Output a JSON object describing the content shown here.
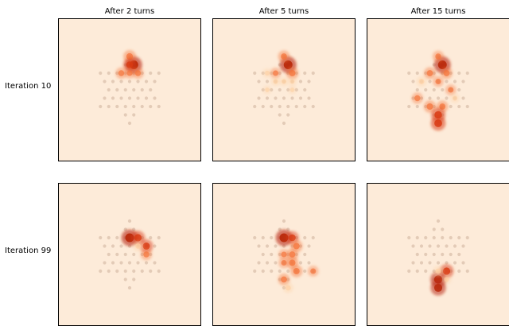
{
  "chart_data": {
    "type": "heatmap",
    "columns": [
      "After 2 turns",
      "After 5 turns",
      "After 15 turns"
    ],
    "rows": [
      "Iteration 10",
      "Iteration 99"
    ],
    "colors": {
      "background": "#fdebd9",
      "board_dot": "#e3cbb7",
      "heat_low": "#fdd0a2",
      "heat_mid": "#f4733a",
      "heat_high": "#d93a12",
      "heat_peak": "#b92a0c",
      "frame": "#000000"
    },
    "board_grid": {
      "rows": [
        {
          "row": 0,
          "cols": [
            0
          ]
        },
        {
          "row": 1,
          "cols": [
            -0.5,
            0.5
          ]
        },
        {
          "row": 2,
          "cols": [
            -3.5,
            -2.5,
            -1.5,
            -0.5,
            0.5,
            1.5,
            2.5,
            3.5
          ]
        },
        {
          "row": 3,
          "cols": [
            -3,
            -2,
            -1,
            0,
            1,
            2,
            3
          ]
        },
        {
          "row": 4,
          "cols": [
            -2.5,
            -1.5,
            -0.5,
            0.5,
            1.5,
            2.5
          ]
        },
        {
          "row": 5,
          "cols": [
            -3,
            -2,
            -1,
            0,
            1,
            2,
            3
          ]
        },
        {
          "row": 6,
          "cols": [
            -3.5,
            -2.5,
            -1.5,
            -0.5,
            0.5,
            1.5,
            2.5,
            3.5
          ]
        },
        {
          "row": 7,
          "cols": [
            -0.5,
            0.5
          ]
        },
        {
          "row": 8,
          "cols": [
            0
          ]
        }
      ]
    },
    "panels": [
      {
        "row": "Iteration 10",
        "column": "After 2 turns",
        "hotspots": [
          {
            "x": 0.5,
            "y": 1,
            "v": 1.0
          },
          {
            "x": 0,
            "y": 0,
            "v": 0.55
          },
          {
            "x": 0,
            "y": 1,
            "v": 0.6
          },
          {
            "x": -1,
            "y": 2,
            "v": 0.4
          },
          {
            "x": 1,
            "y": 2,
            "v": 0.4
          },
          {
            "x": 0,
            "y": 2,
            "v": 0.35
          }
        ]
      },
      {
        "row": "Iteration 10",
        "column": "After 5 turns",
        "hotspots": [
          {
            "x": 0.5,
            "y": 1,
            "v": 1.0
          },
          {
            "x": 0,
            "y": 0,
            "v": 0.45
          },
          {
            "x": 1,
            "y": 2,
            "v": 0.5
          },
          {
            "x": -1,
            "y": 2,
            "v": 0.35
          },
          {
            "x": -2,
            "y": 2,
            "v": 0.2
          },
          {
            "x": -1,
            "y": 3,
            "v": 0.2
          },
          {
            "x": 0,
            "y": 3,
            "v": 0.2
          },
          {
            "x": 1,
            "y": 3,
            "v": 0.15
          },
          {
            "x": -2,
            "y": 4,
            "v": 0.12
          },
          {
            "x": 1,
            "y": 4,
            "v": 0.12
          }
        ]
      },
      {
        "row": "Iteration 10",
        "column": "After 15 turns",
        "hotspots": [
          {
            "x": 0.5,
            "y": 1,
            "v": 1.0
          },
          {
            "x": 0,
            "y": 0,
            "v": 0.4
          },
          {
            "x": -1,
            "y": 2,
            "v": 0.45
          },
          {
            "x": 1,
            "y": 2,
            "v": 0.45
          },
          {
            "x": -2,
            "y": 3,
            "v": 0.3
          },
          {
            "x": 0,
            "y": 3,
            "v": 0.35
          },
          {
            "x": 1.5,
            "y": 4,
            "v": 0.35
          },
          {
            "x": -2.5,
            "y": 5,
            "v": 0.4
          },
          {
            "x": -1,
            "y": 6,
            "v": 0.5
          },
          {
            "x": 0.5,
            "y": 6,
            "v": 0.45
          },
          {
            "x": 0,
            "y": 7,
            "v": 0.75
          },
          {
            "x": 0,
            "y": 8,
            "v": 0.8
          },
          {
            "x": 2,
            "y": 5,
            "v": 0.2
          }
        ]
      },
      {
        "row": "Iteration 99",
        "column": "After 2 turns",
        "hotspots": [
          {
            "x": 0,
            "y": 2,
            "v": 1.0
          },
          {
            "x": 1,
            "y": 2,
            "v": 0.7
          },
          {
            "x": 2,
            "y": 3,
            "v": 0.65
          },
          {
            "x": 2,
            "y": 4,
            "v": 0.4
          },
          {
            "x": 1,
            "y": 3,
            "v": 0.3
          }
        ]
      },
      {
        "row": "Iteration 99",
        "column": "After 5 turns",
        "hotspots": [
          {
            "x": 0,
            "y": 2,
            "v": 1.0
          },
          {
            "x": 1,
            "y": 2,
            "v": 0.6
          },
          {
            "x": 1.5,
            "y": 3,
            "v": 0.5
          },
          {
            "x": 1,
            "y": 4,
            "v": 0.45
          },
          {
            "x": 0,
            "y": 4,
            "v": 0.35
          },
          {
            "x": 1,
            "y": 5,
            "v": 0.5
          },
          {
            "x": 0,
            "y": 5,
            "v": 0.35
          },
          {
            "x": 1.5,
            "y": 6,
            "v": 0.5
          },
          {
            "x": 3.5,
            "y": 6,
            "v": 0.35
          },
          {
            "x": 0,
            "y": 7,
            "v": 0.45
          },
          {
            "x": 0.5,
            "y": 8,
            "v": 0.3
          }
        ]
      },
      {
        "row": "Iteration 99",
        "column": "After 15 turns",
        "hotspots": [
          {
            "x": 1,
            "y": 6,
            "v": 0.7
          },
          {
            "x": 0,
            "y": 7,
            "v": 0.9
          },
          {
            "x": 0,
            "y": 8,
            "v": 0.85
          },
          {
            "x": 0,
            "y": 6,
            "v": 0.3
          },
          {
            "x": 1,
            "y": 7,
            "v": 0.2
          }
        ]
      }
    ]
  }
}
